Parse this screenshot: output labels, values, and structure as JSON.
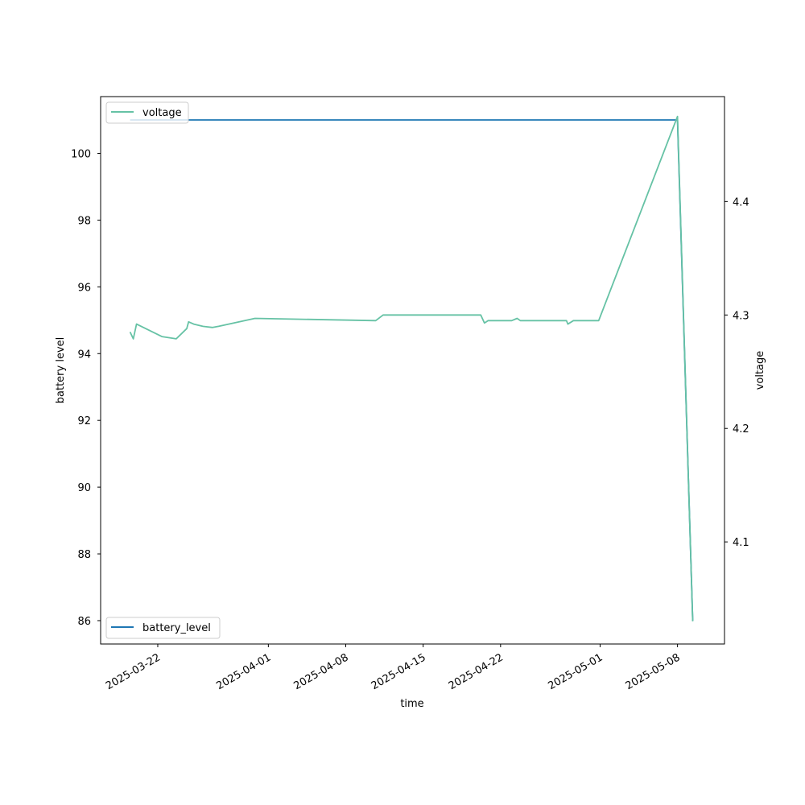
{
  "chart_data": {
    "type": "line",
    "xlabel": "time",
    "ylabel_left": "battery level",
    "ylabel_right": "voltage",
    "x_ticks": [
      "2025-03-22",
      "2025-04-01",
      "2025-04-08",
      "2025-04-15",
      "2025-04-22",
      "2025-05-01",
      "2025-05-08"
    ],
    "y_left_ticks": [
      86,
      88,
      90,
      92,
      94,
      96,
      98,
      100
    ],
    "y_right_ticks": [
      4.1,
      4.2,
      4.3,
      4.4
    ],
    "xlim": [
      "2025-03-16T20:00",
      "2025-05-12T06:00"
    ],
    "ylim_left": [
      85.3,
      101.7
    ],
    "ylim_right": [
      4.01,
      4.4925
    ],
    "legend_left": "lower left",
    "legend_right": "upper left",
    "grid": false,
    "series": [
      {
        "name": "battery_level",
        "axis": "left",
        "color": "#1f77b4",
        "points": [
          [
            "2025-03-19T12:00",
            101
          ],
          [
            "2025-05-08T00:00",
            101
          ],
          [
            "2025-05-09T09:00",
            86
          ]
        ]
      },
      {
        "name": "voltage",
        "axis": "right",
        "color": "#66c2a5",
        "points": [
          [
            "2025-03-19T12:00",
            4.285
          ],
          [
            "2025-03-19T19:00",
            4.279
          ],
          [
            "2025-03-20T02:00",
            4.292
          ],
          [
            "2025-03-22T09:00",
            4.281
          ],
          [
            "2025-03-23T16:00",
            4.279
          ],
          [
            "2025-03-24T15:00",
            4.288
          ],
          [
            "2025-03-24T19:00",
            4.294
          ],
          [
            "2025-03-25T06:00",
            4.292
          ],
          [
            "2025-03-26T02:00",
            4.29
          ],
          [
            "2025-03-26T23:00",
            4.289
          ],
          [
            "2025-03-27T12:00",
            4.29
          ],
          [
            "2025-03-30T19:00",
            4.297
          ],
          [
            "2025-04-10T17:00",
            4.295
          ],
          [
            "2025-04-11T09:00",
            4.3
          ],
          [
            "2025-04-20T05:00",
            4.3
          ],
          [
            "2025-04-20T13:00",
            4.293
          ],
          [
            "2025-04-20T21:00",
            4.295
          ],
          [
            "2025-04-23T00:00",
            4.295
          ],
          [
            "2025-04-23T12:00",
            4.297
          ],
          [
            "2025-04-23T19:00",
            4.295
          ],
          [
            "2025-04-27T23:00",
            4.295
          ],
          [
            "2025-04-28T02:00",
            4.292
          ],
          [
            "2025-04-28T14:00",
            4.295
          ],
          [
            "2025-04-30T21:00",
            4.295
          ],
          [
            "2025-05-08T00:00",
            4.475
          ],
          [
            "2025-05-09T09:00",
            4.03
          ]
        ]
      }
    ]
  }
}
